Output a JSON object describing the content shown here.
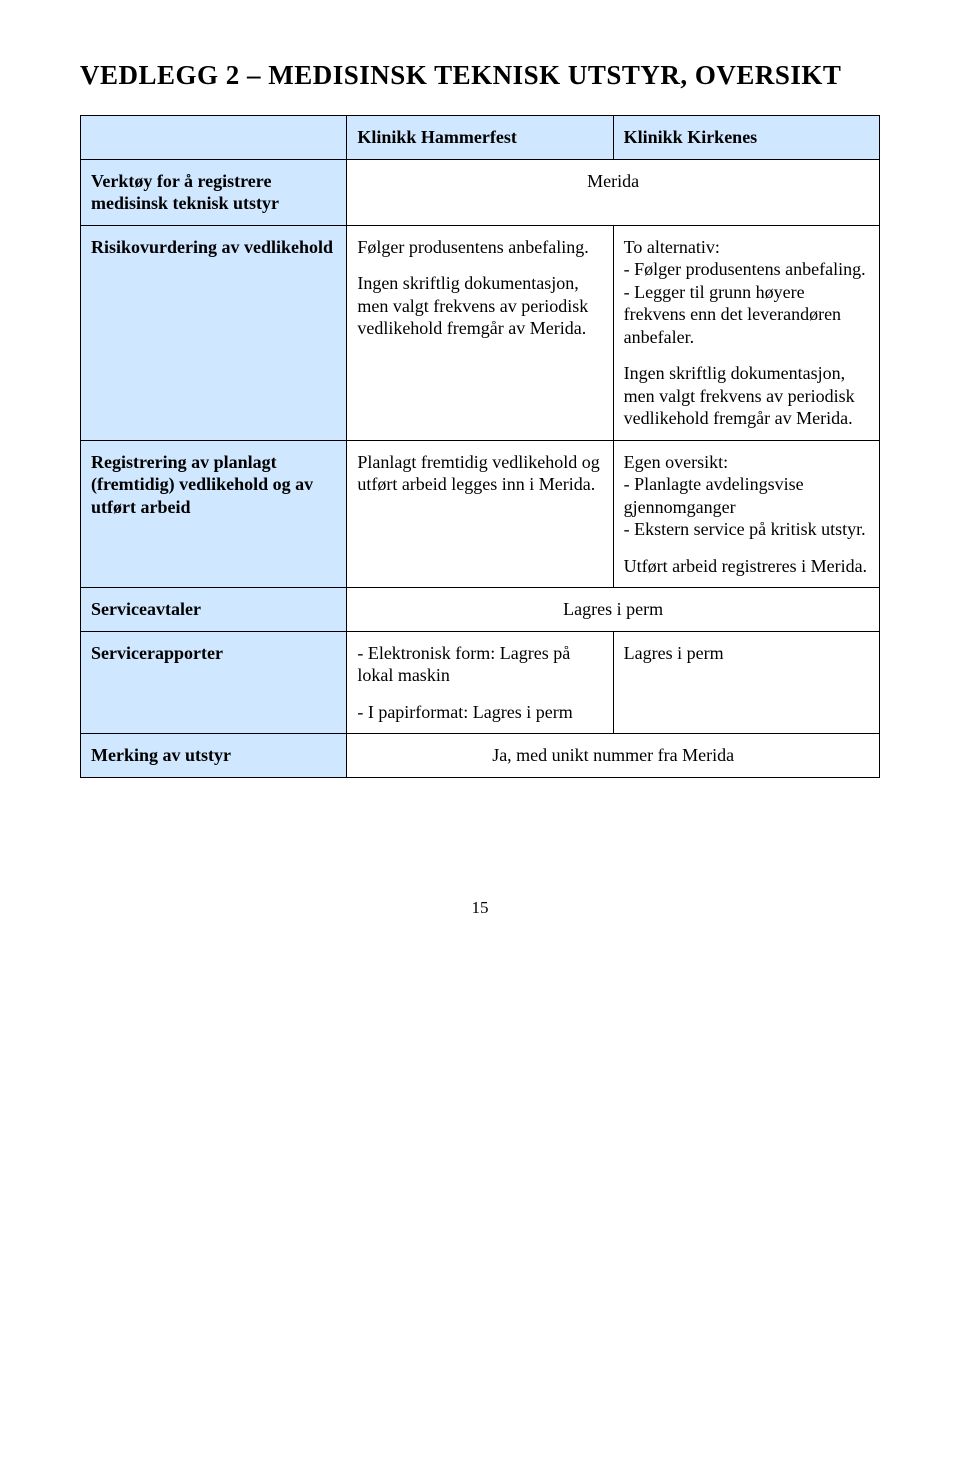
{
  "title": "VEDLEGG 2 – MEDISINSK TEKNISK UTSTYR, OVERSIKT",
  "colors": {
    "header_bg": "#d0e8ff",
    "cell_bg": "#ffffff",
    "border": "#000000",
    "text": "#000000"
  },
  "headers": {
    "col2": "Klinikk Hammerfest",
    "col3": "Klinikk Kirkenes"
  },
  "rows": {
    "verktoy": {
      "label": "Verktøy for å registrere medisinsk teknisk utstyr",
      "merged_value": "Merida"
    },
    "risiko": {
      "label": "Risikovurdering av vedlikehold",
      "col2_p1": "Følger produsentens anbefaling.",
      "col2_p2": "Ingen skriftlig dokumentasjon, men valgt frekvens av periodisk vedlikehold fremgår av Merida.",
      "col3_p1": "To alternativ:",
      "col3_p2": "- Følger produsentens anbefaling.",
      "col3_p3": "- Legger til grunn høyere frekvens enn det leverandøren anbefaler.",
      "col3_p4": "Ingen skriftlig dokumentasjon, men valgt frekvens av periodisk vedlikehold fremgår av Merida."
    },
    "registrering": {
      "label": "Registrering av planlagt (fremtidig) vedlikehold og av utført arbeid",
      "col2_p1": "Planlagt fremtidig vedlikehold og utført arbeid legges inn i Merida.",
      "col3_p1": "Egen oversikt:",
      "col3_p2": "- Planlagte avdelingsvise gjennomganger",
      "col3_p3": "- Ekstern service på kritisk utstyr.",
      "col3_p4": "Utført arbeid registreres i Merida."
    },
    "serviceavtaler": {
      "label": "Serviceavtaler",
      "merged_value": "Lagres i perm"
    },
    "servicerapporter": {
      "label": "Servicerapporter",
      "col2_p1": "- Elektronisk form: Lagres på lokal maskin",
      "col2_p2": "- I papirformat: Lagres i perm",
      "col3_p1": "Lagres i perm"
    },
    "merking": {
      "label": "Merking av utstyr",
      "merged_value": "Ja, med unikt nummer fra Merida"
    }
  },
  "page_number": "15"
}
